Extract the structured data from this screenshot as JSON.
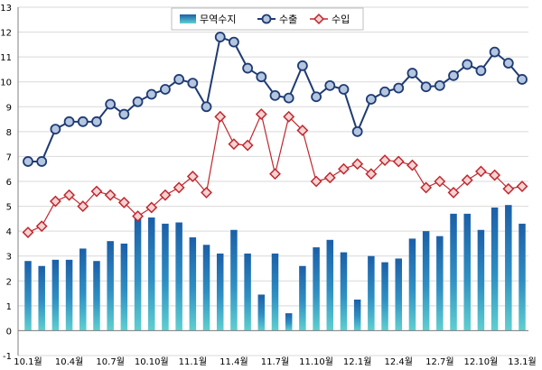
{
  "chart_data": {
    "type": "bar+line",
    "title": "",
    "xlabel": "",
    "ylabel": "",
    "ylim": [
      -1,
      13
    ],
    "yticks": [
      -1,
      0,
      1,
      2,
      3,
      4,
      5,
      6,
      7,
      8,
      9,
      10,
      11,
      12,
      13
    ],
    "grid": true,
    "legend_position": "top-center",
    "x_tick_labels": [
      "10.1월",
      "10.4월",
      "10.7월",
      "10.10월",
      "11.1월",
      "11.4월",
      "11.7월",
      "11.10월",
      "12.1월",
      "12.4월",
      "12.7월",
      "12.10월",
      "13.1월"
    ],
    "months": 37,
    "series": [
      {
        "name": "무역수지",
        "kind": "bar",
        "color": "#1f6fb5",
        "values": [
          2.8,
          2.6,
          2.85,
          2.85,
          3.3,
          2.8,
          3.6,
          3.5,
          4.6,
          4.55,
          4.3,
          4.35,
          3.75,
          3.45,
          3.1,
          4.05,
          3.1,
          1.45,
          3.1,
          0.7,
          2.6,
          3.35,
          3.65,
          3.15,
          1.25,
          3.0,
          2.75,
          2.9,
          3.7,
          4.0,
          3.8,
          4.7,
          4.7,
          4.05,
          4.95,
          5.05,
          4.3
        ]
      },
      {
        "name": "수출",
        "kind": "line",
        "color": "#1f3b73",
        "values": [
          6.8,
          6.8,
          8.1,
          8.4,
          8.4,
          8.4,
          9.1,
          8.7,
          9.2,
          9.5,
          9.7,
          10.1,
          9.95,
          9.0,
          11.8,
          11.6,
          10.55,
          10.2,
          9.45,
          9.35,
          10.65,
          9.4,
          9.85,
          9.7,
          8.0,
          9.3,
          9.6,
          9.75,
          10.35,
          9.8,
          9.85,
          10.25,
          10.7,
          10.45,
          11.2,
          10.75,
          10.1
        ]
      },
      {
        "name": "수입",
        "kind": "line",
        "color": "#c0282e",
        "values": [
          3.95,
          4.2,
          5.2,
          5.45,
          5.0,
          5.6,
          5.45,
          5.15,
          4.6,
          4.95,
          5.45,
          5.75,
          6.2,
          5.55,
          8.6,
          7.5,
          7.45,
          8.7,
          6.3,
          8.6,
          8.05,
          6.0,
          6.15,
          6.5,
          6.7,
          6.3,
          6.85,
          6.8,
          6.65,
          5.75,
          6.0,
          5.55,
          6.05,
          6.4,
          6.25,
          5.7,
          5.8
        ]
      }
    ]
  }
}
